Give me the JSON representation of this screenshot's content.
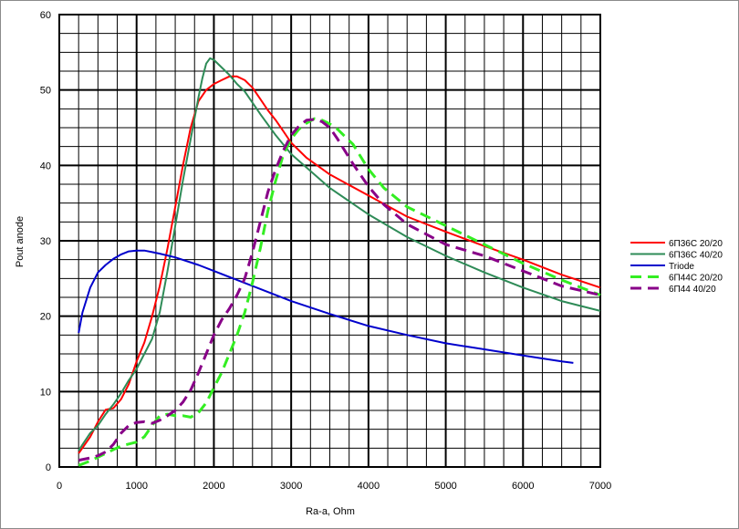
{
  "chart_data": {
    "type": "line",
    "title": "",
    "xlabel": "Ra-a, Ohm",
    "ylabel": "Pout anode",
    "xlim": [
      0,
      7000
    ],
    "ylim": [
      0,
      60
    ],
    "x_ticks": [
      0,
      1000,
      2000,
      3000,
      4000,
      5000,
      6000,
      7000
    ],
    "y_ticks": [
      0,
      10,
      20,
      30,
      40,
      50,
      60
    ],
    "minor_grid_x_step": 250,
    "minor_grid_y_step": 2.5,
    "grid": true,
    "legend_position": "right",
    "series": [
      {
        "name": "6П36С 20/20",
        "color": "#ff0000",
        "dashed": false,
        "points": [
          [
            250,
            1.8
          ],
          [
            400,
            4
          ],
          [
            500,
            6
          ],
          [
            600,
            7.6
          ],
          [
            700,
            7.8
          ],
          [
            800,
            9
          ],
          [
            900,
            11
          ],
          [
            1000,
            14
          ],
          [
            1100,
            16.5
          ],
          [
            1200,
            20
          ],
          [
            1300,
            24
          ],
          [
            1400,
            29
          ],
          [
            1500,
            34.5
          ],
          [
            1600,
            40
          ],
          [
            1700,
            45
          ],
          [
            1800,
            48.5
          ],
          [
            1900,
            50
          ],
          [
            2000,
            50.8
          ],
          [
            2100,
            51.3
          ],
          [
            2200,
            51.8
          ],
          [
            2300,
            51.8
          ],
          [
            2400,
            51.3
          ],
          [
            2500,
            50.3
          ],
          [
            2600,
            48.8
          ],
          [
            2700,
            47.3
          ],
          [
            2800,
            46
          ],
          [
            2900,
            44.5
          ],
          [
            3000,
            43
          ],
          [
            3200,
            41
          ],
          [
            3500,
            38.8
          ],
          [
            4000,
            36
          ],
          [
            4500,
            33.2
          ],
          [
            5000,
            31.2
          ],
          [
            5500,
            29.3
          ],
          [
            6000,
            27.5
          ],
          [
            6500,
            25.5
          ],
          [
            7000,
            23.8
          ]
        ]
      },
      {
        "name": "6П36С 40/20",
        "color": "#2e8b57",
        "dashed": false,
        "points": [
          [
            250,
            2.2
          ],
          [
            400,
            4.5
          ],
          [
            500,
            5.5
          ],
          [
            600,
            7
          ],
          [
            700,
            8.3
          ],
          [
            800,
            9.8
          ],
          [
            900,
            11.5
          ],
          [
            1000,
            13
          ],
          [
            1100,
            15
          ],
          [
            1200,
            17
          ],
          [
            1300,
            20.5
          ],
          [
            1400,
            26
          ],
          [
            1500,
            32
          ],
          [
            1600,
            38
          ],
          [
            1700,
            43.5
          ],
          [
            1800,
            49
          ],
          [
            1850,
            51.5
          ],
          [
            1900,
            53.5
          ],
          [
            1950,
            54.2
          ],
          [
            2000,
            54
          ],
          [
            2100,
            53
          ],
          [
            2200,
            52
          ],
          [
            2300,
            50.8
          ],
          [
            2400,
            49.8
          ],
          [
            2500,
            48.3
          ],
          [
            2600,
            46.8
          ],
          [
            2800,
            44
          ],
          [
            3000,
            41.5
          ],
          [
            3500,
            37
          ],
          [
            4000,
            33.5
          ],
          [
            4500,
            30.5
          ],
          [
            5000,
            28
          ],
          [
            5500,
            25.8
          ],
          [
            6000,
            23.8
          ],
          [
            6500,
            22
          ],
          [
            7000,
            20.7
          ]
        ]
      },
      {
        "name": "Triode",
        "color": "#0000cc",
        "dashed": false,
        "points": [
          [
            250,
            17.8
          ],
          [
            300,
            20.5
          ],
          [
            400,
            23.8
          ],
          [
            500,
            25.8
          ],
          [
            600,
            26.8
          ],
          [
            700,
            27.6
          ],
          [
            800,
            28.2
          ],
          [
            900,
            28.6
          ],
          [
            1000,
            28.7
          ],
          [
            1100,
            28.7
          ],
          [
            1200,
            28.5
          ],
          [
            1300,
            28.3
          ],
          [
            1500,
            27.8
          ],
          [
            1800,
            26.8
          ],
          [
            2000,
            26
          ],
          [
            2500,
            24
          ],
          [
            3000,
            22
          ],
          [
            3500,
            20.3
          ],
          [
            4000,
            18.7
          ],
          [
            4500,
            17.5
          ],
          [
            5000,
            16.4
          ],
          [
            5500,
            15.6
          ],
          [
            6000,
            14.8
          ],
          [
            6500,
            14
          ],
          [
            6650,
            13.8
          ]
        ]
      },
      {
        "name": "6П44С 20/20",
        "color": "#33ee22",
        "dashed": true,
        "points": [
          [
            250,
            0.2
          ],
          [
            400,
            0.8
          ],
          [
            600,
            1.8
          ],
          [
            800,
            2.8
          ],
          [
            1000,
            3.3
          ],
          [
            1100,
            4
          ],
          [
            1200,
            5.5
          ],
          [
            1300,
            6.8
          ],
          [
            1400,
            7
          ],
          [
            1500,
            6.8
          ],
          [
            1600,
            6.8
          ],
          [
            1700,
            6.6
          ],
          [
            1800,
            7.2
          ],
          [
            1900,
            8.5
          ],
          [
            2000,
            10.5
          ],
          [
            2100,
            12.5
          ],
          [
            2200,
            15
          ],
          [
            2300,
            17.5
          ],
          [
            2400,
            20.5
          ],
          [
            2500,
            24.5
          ],
          [
            2600,
            29
          ],
          [
            2700,
            34
          ],
          [
            2800,
            38
          ],
          [
            2900,
            41.5
          ],
          [
            3000,
            43.5
          ],
          [
            3100,
            44.8
          ],
          [
            3200,
            45.6
          ],
          [
            3300,
            46.2
          ],
          [
            3400,
            46
          ],
          [
            3500,
            45.5
          ],
          [
            3600,
            44.8
          ],
          [
            3800,
            42.8
          ],
          [
            4000,
            39.5
          ],
          [
            4200,
            37
          ],
          [
            4500,
            34.5
          ],
          [
            5000,
            32
          ],
          [
            5500,
            29.5
          ],
          [
            6000,
            27
          ],
          [
            6500,
            24.8
          ],
          [
            7000,
            22.8
          ]
        ]
      },
      {
        "name": "6П44 40/20",
        "color": "#880088",
        "dashed": true,
        "points": [
          [
            250,
            0.9
          ],
          [
            400,
            1.2
          ],
          [
            500,
            1.5
          ],
          [
            600,
            2
          ],
          [
            700,
            3
          ],
          [
            800,
            4.5
          ],
          [
            900,
            5.5
          ],
          [
            1000,
            5.9
          ],
          [
            1100,
            6
          ],
          [
            1200,
            5.8
          ],
          [
            1300,
            6.2
          ],
          [
            1400,
            6.8
          ],
          [
            1500,
            7.5
          ],
          [
            1600,
            8.6
          ],
          [
            1700,
            10.2
          ],
          [
            1800,
            12.5
          ],
          [
            1900,
            15
          ],
          [
            2000,
            17.5
          ],
          [
            2100,
            19.5
          ],
          [
            2200,
            21
          ],
          [
            2300,
            22.8
          ],
          [
            2400,
            25
          ],
          [
            2500,
            28.5
          ],
          [
            2600,
            32.5
          ],
          [
            2700,
            36.5
          ],
          [
            2800,
            39.5
          ],
          [
            2900,
            42
          ],
          [
            3000,
            44
          ],
          [
            3100,
            45.2
          ],
          [
            3200,
            46
          ],
          [
            3300,
            46.1
          ],
          [
            3400,
            45.8
          ],
          [
            3500,
            45
          ],
          [
            3600,
            43.5
          ],
          [
            3800,
            40.2
          ],
          [
            4000,
            37.2
          ],
          [
            4200,
            34.8
          ],
          [
            4500,
            32.2
          ],
          [
            5000,
            29.5
          ],
          [
            5500,
            28
          ],
          [
            6000,
            26
          ],
          [
            6500,
            24
          ],
          [
            7000,
            22.8
          ]
        ]
      }
    ]
  }
}
